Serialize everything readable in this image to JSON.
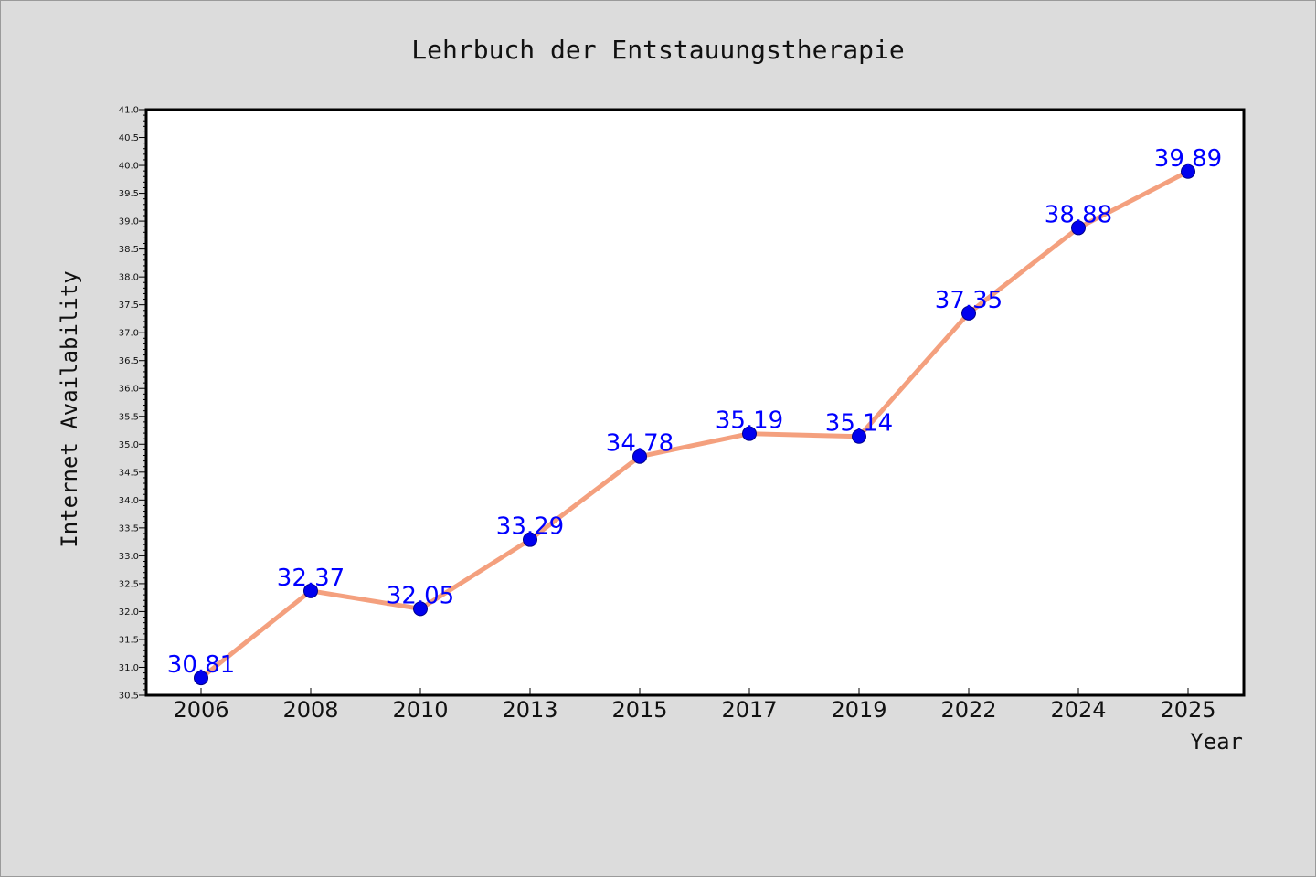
{
  "chart_data": {
    "type": "line",
    "title": "Lehrbuch der Entstauungstherapie",
    "xlabel": "Year",
    "ylabel": "Internet Availability",
    "categories": [
      "2006",
      "2008",
      "2010",
      "2013",
      "2015",
      "2017",
      "2019",
      "2022",
      "2024",
      "2025"
    ],
    "values": [
      30.81,
      32.37,
      32.05,
      33.29,
      34.78,
      35.19,
      35.14,
      37.35,
      38.88,
      39.89
    ],
    "data_labels": [
      "30.81",
      "32.37",
      "32.05",
      "33.29",
      "34.78",
      "35.19",
      "35.14",
      "37.35",
      "38.88",
      "39.89"
    ],
    "ylim": [
      30.5,
      41.0
    ],
    "yticks": [
      "30.5",
      "31.0",
      "31.5",
      "32.0",
      "32.5",
      "33.0",
      "33.5",
      "34.0",
      "34.5",
      "35.0",
      "35.5",
      "36.0",
      "36.5",
      "37.0",
      "37.5",
      "38.0",
      "38.5",
      "39.0",
      "39.5",
      "40.0",
      "40.5",
      "41.0"
    ],
    "ytick_values": [
      30.5,
      31.0,
      31.5,
      32.0,
      32.5,
      33.0,
      33.5,
      34.0,
      34.5,
      35.0,
      35.5,
      36.0,
      36.5,
      37.0,
      37.5,
      38.0,
      38.5,
      39.0,
      39.5,
      40.0,
      40.5,
      41.0
    ],
    "grid": false,
    "legend": "none",
    "colors": {
      "line": "#f4a07e",
      "marker": "#0000ee",
      "label": "#0000ff",
      "plot_bg": "#ffffff",
      "page_bg": "#dcdcdc"
    }
  }
}
